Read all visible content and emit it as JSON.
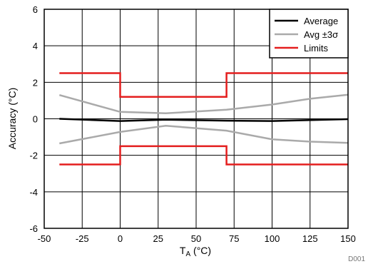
{
  "chart_data": {
    "type": "line",
    "xlabel_main": "T",
    "xlabel_sub": "A",
    "xlabel_unit": " (°C)",
    "ylabel": "Accuracy (°C)",
    "xlim": [
      -50,
      150
    ],
    "ylim": [
      -6,
      6
    ],
    "xticks": [
      "-50",
      "-25",
      "0",
      "25",
      "50",
      "75",
      "100",
      "125",
      "150"
    ],
    "yticks": [
      "-6",
      "-4",
      "-2",
      "0",
      "2",
      "4",
      "6"
    ],
    "grid": true,
    "legend_position": "top-right",
    "figure_id": "D001",
    "series": [
      {
        "name": "Average",
        "color": "#000000",
        "lines": [
          [
            [
              -40,
              0
            ],
            [
              0,
              -0.12
            ],
            [
              30,
              -0.05
            ],
            [
              70,
              -0.1
            ],
            [
              100,
              -0.12
            ],
            [
              150,
              -0.02
            ]
          ]
        ]
      },
      {
        "name": "Avg ±3σ",
        "color": "#aaaaaa",
        "lines": [
          [
            [
              -40,
              1.3
            ],
            [
              0,
              0.38
            ],
            [
              30,
              0.3
            ],
            [
              70,
              0.5
            ],
            [
              100,
              0.78
            ],
            [
              125,
              1.1
            ],
            [
              150,
              1.32
            ]
          ],
          [
            [
              -40,
              -1.35
            ],
            [
              0,
              -0.72
            ],
            [
              30,
              -0.38
            ],
            [
              70,
              -0.65
            ],
            [
              100,
              -1.12
            ],
            [
              125,
              -1.25
            ],
            [
              150,
              -1.32
            ]
          ]
        ]
      },
      {
        "name": "Limits",
        "color": "#e41e1e",
        "lines": [
          [
            [
              -40,
              2.5
            ],
            [
              0,
              2.5
            ],
            [
              0,
              1.2
            ],
            [
              70,
              1.2
            ],
            [
              70,
              2.5
            ],
            [
              150,
              2.5
            ]
          ],
          [
            [
              -40,
              -2.5
            ],
            [
              0,
              -2.5
            ],
            [
              0,
              -1.5
            ],
            [
              70,
              -1.5
            ],
            [
              70,
              -2.5
            ],
            [
              150,
              -2.5
            ]
          ]
        ]
      }
    ]
  }
}
